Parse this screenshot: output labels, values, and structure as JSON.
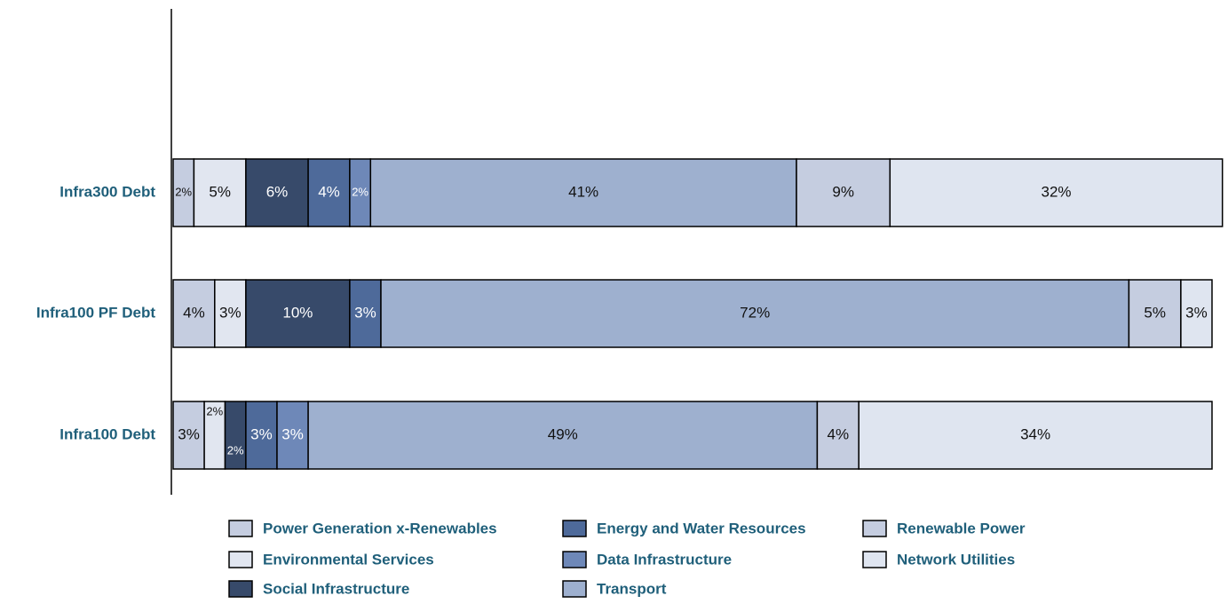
{
  "chart_data": {
    "type": "stacked_barh",
    "categories": [
      "Infra300 Debt",
      "Infra100 PF Debt",
      "Infra100 Debt"
    ],
    "xlim": [
      0,
      100
    ],
    "series": [
      {
        "name": "Power Generation x-Renewables",
        "color": "#c5cde0",
        "values": [
          2,
          4,
          3
        ],
        "value_labels": [
          "2%",
          "4%",
          "3%"
        ]
      },
      {
        "name": "Environmental Services",
        "color": "#e1e6f0",
        "values": [
          5,
          3,
          2
        ],
        "value_labels": [
          "5%",
          "3%",
          "2%"
        ]
      },
      {
        "name": "Social Infrastructure",
        "color": "#374a6a",
        "values": [
          6,
          10,
          2
        ],
        "value_labels": [
          "6%",
          "10%",
          "2%"
        ]
      },
      {
        "name": "Energy and Water Resources",
        "color": "#4e6a9a",
        "values": [
          4,
          3,
          3
        ],
        "value_labels": [
          "4%",
          "3%",
          "3%"
        ]
      },
      {
        "name": "Data Infrastructure",
        "color": "#6e88b8",
        "values": [
          2,
          null,
          3
        ],
        "value_labels": [
          "2%",
          null,
          "3%"
        ]
      },
      {
        "name": "Transport",
        "color": "#9eb0cf",
        "values": [
          41,
          72,
          49
        ],
        "value_labels": [
          "41%",
          "72%",
          "49%"
        ]
      },
      {
        "name": "Renewable Power",
        "color": "#c5cde0",
        "values": [
          9,
          5,
          4
        ],
        "value_labels": [
          "9%",
          "5%",
          "4%"
        ]
      },
      {
        "name": "Network Utilities",
        "color": "#dfe5f0",
        "values": [
          32,
          3,
          34
        ],
        "value_labels": [
          "32%",
          "3%",
          "34%"
        ]
      }
    ]
  }
}
